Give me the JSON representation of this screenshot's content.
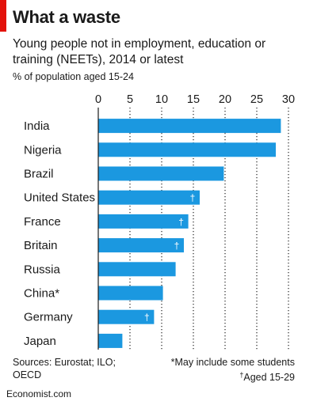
{
  "colors": {
    "accent": "#e3120b",
    "bar": "#1b98e0",
    "dagger": "#ffffff",
    "grid": "#333333"
  },
  "header": {
    "title": "What a waste",
    "subtitle": "Young people not in employment, education or training (NEETs), 2014 or latest",
    "units": "% of population aged 15-24"
  },
  "footer": {
    "sources": "Sources: Eurostat; ILO; OECD",
    "note_1": "*May include some students",
    "note_2_mark": "†",
    "note_2": "Aged 15-29",
    "brand": "Economist.com"
  },
  "chart_data": {
    "type": "bar",
    "orientation": "horizontal",
    "categories": [
      "India",
      "Nigeria",
      "Brazil",
      "United States",
      "France",
      "Britain",
      "Russia",
      "China*",
      "Germany",
      "Japan"
    ],
    "values": [
      28.8,
      28.0,
      19.8,
      16.0,
      14.2,
      13.5,
      12.2,
      10.2,
      8.8,
      3.8
    ],
    "marks": [
      "",
      "",
      "",
      "†",
      "†",
      "†",
      "",
      "",
      "†",
      ""
    ],
    "xlim": [
      0,
      30
    ],
    "ticks": [
      "0",
      "5",
      "10",
      "15",
      "20",
      "25",
      "30"
    ],
    "tick_values": [
      0,
      5,
      10,
      15,
      20,
      25,
      30
    ],
    "grid": "vertical dotted"
  }
}
